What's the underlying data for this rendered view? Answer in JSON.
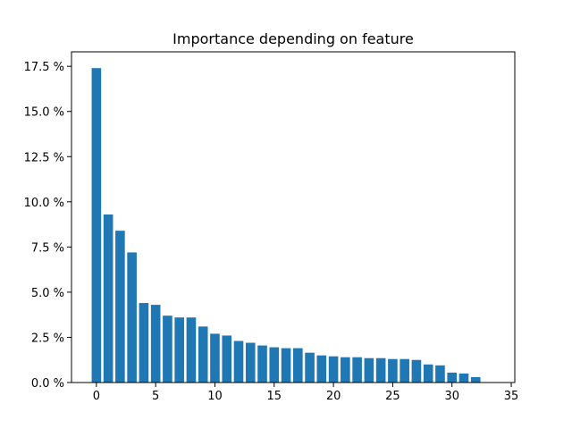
{
  "chart_data": {
    "type": "bar",
    "title": "Importance depending on feature",
    "xlabel": "",
    "ylabel": "",
    "x": [
      0,
      1,
      2,
      3,
      4,
      5,
      6,
      7,
      8,
      9,
      10,
      11,
      12,
      13,
      14,
      15,
      16,
      17,
      18,
      19,
      20,
      21,
      22,
      23,
      24,
      25,
      26,
      27,
      28,
      29,
      30,
      31,
      32
    ],
    "values": [
      17.4,
      9.3,
      8.4,
      7.2,
      4.4,
      4.3,
      3.7,
      3.6,
      3.6,
      3.1,
      2.7,
      2.6,
      2.3,
      2.2,
      2.05,
      1.95,
      1.9,
      1.9,
      1.65,
      1.5,
      1.45,
      1.4,
      1.4,
      1.35,
      1.35,
      1.3,
      1.3,
      1.25,
      1.0,
      0.95,
      0.55,
      0.5,
      0.3
    ],
    "xlim": [
      -2.1,
      35.3
    ],
    "ylim": [
      0,
      18.3
    ],
    "xticks": [
      0,
      5,
      10,
      15,
      20,
      25,
      30,
      35
    ],
    "xtick_labels": [
      "0",
      "5",
      "10",
      "15",
      "20",
      "25",
      "30",
      "35"
    ],
    "yticks": [
      0,
      2.5,
      5,
      7.5,
      10,
      12.5,
      15,
      17.5
    ],
    "ytick_labels": [
      "0.0 %",
      "2.5 %",
      "5.0 %",
      "7.5 %",
      "10.0 %",
      "12.5 %",
      "15.0 %",
      "17.5 %"
    ],
    "bar_color": "#1f77b4",
    "grid": false,
    "legend": "none"
  }
}
